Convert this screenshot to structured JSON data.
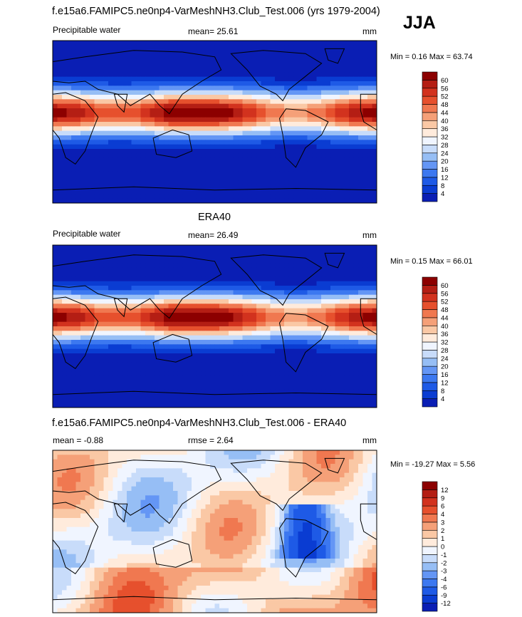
{
  "season": "JJA",
  "panels": [
    {
      "title": "f.e15a6.FAMIPC5.ne0np4-VarMeshNH3.Club_Test.006 (yrs 1979-2004)",
      "left_label": "Precipitable water",
      "center_label": "mean=  25.61",
      "units": "mm",
      "minmax": "Min =   0.16 Max =  63.74"
    },
    {
      "title": "ERA40",
      "left_label": "Precipitable water",
      "center_label": "mean=  26.49",
      "units": "mm",
      "minmax": "Min =   0.15 Max =  66.01"
    },
    {
      "title": "f.e15a6.FAMIPC5.ne0np4-VarMeshNH3.Club_Test.006 - ERA40",
      "left_label": "mean =  -0.88",
      "center_label": "rmse =   2.64",
      "units": "mm",
      "minmax": "Min = -19.27 Max =   5.56"
    }
  ],
  "colors": {
    "pw": [
      "#00008b",
      "#0a1eb4",
      "#0a3cd2",
      "#1e5ae6",
      "#3c78f0",
      "#6496f5",
      "#96bef5",
      "#c8dcfa",
      "#f0f5ff",
      "#ffebdc",
      "#fac8a5",
      "#f5a078",
      "#f07850",
      "#e6502d",
      "#d2321e",
      "#b41e14",
      "#8c0000"
    ],
    "diff": [
      "#00008b",
      "#0a1eb4",
      "#0a3cd2",
      "#1e5ae6",
      "#3c78f0",
      "#6496f5",
      "#96bef5",
      "#c8dcfa",
      "#f0f5ff",
      "#ffebdc",
      "#fac8a5",
      "#f5a078",
      "#f07850",
      "#e6502d",
      "#d2321e",
      "#b41e14",
      "#8c0000"
    ]
  },
  "chart_data": [
    {
      "type": "heatmap",
      "title": "f.e15a6.FAMIPC5.ne0np4-VarMeshNH3.Club_Test.006 (yrs 1979-2004)",
      "variable": "Precipitable water",
      "units": "mm",
      "mean": 25.61,
      "min": 0.16,
      "max": 63.74,
      "levels": [
        4,
        8,
        12,
        16,
        20,
        24,
        28,
        32,
        36,
        40,
        44,
        48,
        52,
        56,
        60
      ]
    },
    {
      "type": "heatmap",
      "title": "ERA40",
      "variable": "Precipitable water",
      "units": "mm",
      "mean": 26.49,
      "min": 0.15,
      "max": 66.01,
      "levels": [
        4,
        8,
        12,
        16,
        20,
        24,
        28,
        32,
        36,
        40,
        44,
        48,
        52,
        56,
        60
      ]
    },
    {
      "type": "heatmap",
      "title": "f.e15a6.FAMIPC5.ne0np4-VarMeshNH3.Club_Test.006 - ERA40",
      "units": "mm",
      "mean": -0.88,
      "rmse": 2.64,
      "min": -19.27,
      "max": 5.56,
      "levels": [
        -12,
        -9,
        -6,
        -4,
        -3,
        -2,
        -1,
        0,
        1,
        2,
        3,
        4,
        6,
        9,
        12
      ]
    }
  ]
}
